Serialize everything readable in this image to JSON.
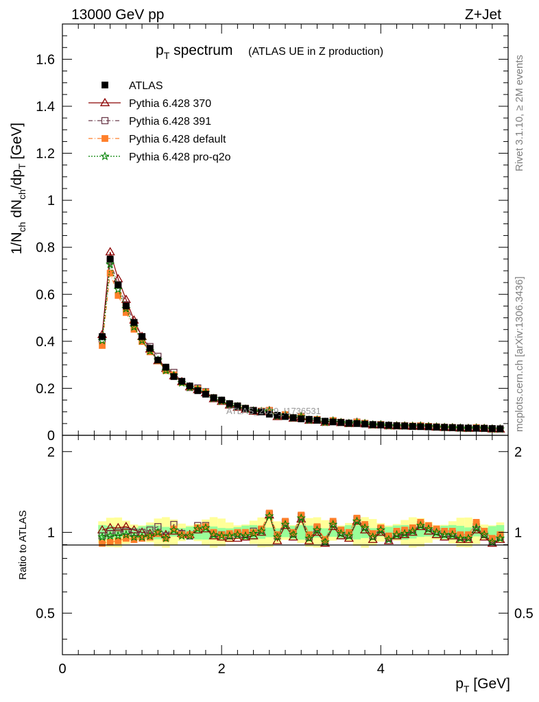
{
  "header": {
    "left": "13000 GeV pp",
    "right": "Z+Jet"
  },
  "title": {
    "main": "p",
    "main_sub": "T",
    "main_rest": " spectrum",
    "extra": "(ATLAS UE in Z production)"
  },
  "side": {
    "rivet": "Rivet 3.1.10, ≥ 2M events",
    "mcplots": "mcplots.cern.ch [arXiv:1306.3436]"
  },
  "watermark": "ATLAS_2019_I1736531",
  "axes": {
    "ylabel_main": "1/N",
    "ylabel_ch1": "ch",
    "ylabel_mid": " dN",
    "ylabel_ch2": "ch",
    "ylabel_end": "/dp",
    "ylabel_T": "T",
    "ylabel_unit": " [GeV]",
    "ylabel_ratio": "Ratio to ATLAS",
    "xlabel": "p",
    "xlabel_sub": "T",
    "xlabel_unit": " [GeV]"
  },
  "legend": [
    {
      "label": "ATLAS",
      "color": "#000000",
      "marker": "square-filled",
      "line": "none"
    },
    {
      "label": "Pythia 6.428 370",
      "color": "#8b0000",
      "marker": "triangle-open",
      "line": "solid"
    },
    {
      "label": "Pythia 6.428 391",
      "color": "#6b3a4a",
      "marker": "square-open",
      "line": "dashdot"
    },
    {
      "label": "Pythia 6.428 default",
      "color": "#ff7f2a",
      "marker": "square-filled",
      "line": "dashdot"
    },
    {
      "label": "Pythia 6.428 pro-q2o",
      "color": "#008000",
      "marker": "star",
      "line": "dotted"
    }
  ],
  "chart_data": {
    "type": "scatter",
    "x_range": [
      0,
      5.6
    ],
    "main_ylim": [
      0,
      1.75
    ],
    "ratio_ylim": [
      0.35,
      2.3
    ],
    "ratio_log": true,
    "x_ticks": [
      "0",
      "2",
      "4"
    ],
    "main_y_ticks": [
      "0",
      "0.2",
      "0.4",
      "0.6",
      "0.8",
      "1",
      "1.2",
      "1.4",
      "1.6"
    ],
    "ratio_y_ticks": [
      "0.5",
      "1",
      "2"
    ],
    "x": [
      0.5,
      0.6,
      0.7,
      0.8,
      0.9,
      1.0,
      1.1,
      1.2,
      1.3,
      1.4,
      1.5,
      1.6,
      1.7,
      1.8,
      1.9,
      2.0,
      2.1,
      2.2,
      2.3,
      2.4,
      2.5,
      2.6,
      2.7,
      2.8,
      2.9,
      3.0,
      3.1,
      3.2,
      3.3,
      3.4,
      3.5,
      3.6,
      3.7,
      3.8,
      3.9,
      4.0,
      4.1,
      4.2,
      4.3,
      4.4,
      4.5,
      4.6,
      4.7,
      4.8,
      4.9,
      5.0,
      5.1,
      5.2,
      5.3,
      5.4,
      5.5
    ],
    "atlas": [
      0.42,
      0.75,
      0.64,
      0.55,
      0.48,
      0.42,
      0.37,
      0.32,
      0.29,
      0.25,
      0.23,
      0.21,
      0.19,
      0.175,
      0.16,
      0.15,
      0.135,
      0.125,
      0.115,
      0.105,
      0.1,
      0.09,
      0.085,
      0.08,
      0.075,
      0.07,
      0.068,
      0.064,
      0.06,
      0.057,
      0.055,
      0.052,
      0.05,
      0.048,
      0.046,
      0.044,
      0.043,
      0.041,
      0.04,
      0.038,
      0.037,
      0.036,
      0.035,
      0.034,
      0.033,
      0.032,
      0.031,
      0.03,
      0.03,
      0.029,
      0.028
    ],
    "ratio_band_inner": 0.05,
    "ratio_band_outer": 0.1,
    "series": [
      {
        "name": "Pythia 6.428 370",
        "ratio": [
          1.02,
          1.04,
          1.04,
          1.05,
          1.02,
          1.0,
          0.99,
          0.99,
          0.98,
          1.01,
          0.99,
          0.98,
          1.02,
          1.03,
          0.97,
          0.96,
          0.95,
          0.95,
          0.96,
          0.97,
          1.0,
          1.16,
          0.93,
          1.06,
          0.96,
          1.12,
          0.93,
          1.0,
          0.91,
          1.05,
          0.97,
          0.95,
          1.1,
          1.02,
          0.94,
          1.0,
          0.93,
          0.97,
          0.98,
          1.0,
          1.05,
          1.01,
          0.98,
          0.96,
          0.97,
          0.94,
          0.94,
          1.02,
          0.96,
          0.91,
          0.94
        ]
      },
      {
        "name": "Pythia 6.428 391",
        "ratio": [
          0.97,
          0.99,
          1.0,
          1.01,
          1.0,
          1.0,
          1.02,
          1.05,
          0.97,
          1.07,
          0.99,
          0.97,
          1.06,
          1.06,
          0.99,
          0.98,
          0.97,
          0.99,
          0.98,
          1.01,
          1.02,
          1.17,
          0.97,
          1.09,
          0.99,
          1.15,
          0.96,
          1.04,
          0.93,
          1.08,
          1.0,
          0.98,
          1.12,
          1.05,
          0.97,
          1.03,
          0.95,
          0.99,
          1.0,
          1.02,
          1.07,
          1.04,
          1.01,
          0.99,
          0.99,
          0.96,
          0.96,
          1.05,
          0.98,
          0.93,
          0.96
        ]
      },
      {
        "name": "Pythia 6.428 default",
        "ratio": [
          0.91,
          0.92,
          0.93,
          0.95,
          0.94,
          0.95,
          0.96,
          0.99,
          0.95,
          1.03,
          0.98,
          0.98,
          1.04,
          1.05,
          1.0,
          0.98,
          0.99,
          1.0,
          1.0,
          1.0,
          1.03,
          1.18,
          0.98,
          1.1,
          1.0,
          1.16,
          0.98,
          1.05,
          0.94,
          1.1,
          1.02,
          1.0,
          1.13,
          1.07,
          0.99,
          1.04,
          0.97,
          1.01,
          1.02,
          1.04,
          1.09,
          1.06,
          1.03,
          1.01,
          1.01,
          0.98,
          0.98,
          1.09,
          1.01,
          0.95,
          0.98
        ]
      },
      {
        "name": "Pythia 6.428 pro-q2o",
        "ratio": [
          0.96,
          0.97,
          0.97,
          0.98,
          0.96,
          0.96,
          0.97,
          1.0,
          0.95,
          1.02,
          0.97,
          0.97,
          1.03,
          1.04,
          0.98,
          0.97,
          0.97,
          0.98,
          0.97,
          0.99,
          1.01,
          1.15,
          0.96,
          1.07,
          0.98,
          1.13,
          0.95,
          1.02,
          0.92,
          1.07,
          0.99,
          0.97,
          1.1,
          1.04,
          0.96,
          1.02,
          0.94,
          0.98,
          0.99,
          1.01,
          1.06,
          1.03,
          1.0,
          0.98,
          0.98,
          0.95,
          0.95,
          1.04,
          0.98,
          0.92,
          0.95
        ]
      }
    ]
  }
}
